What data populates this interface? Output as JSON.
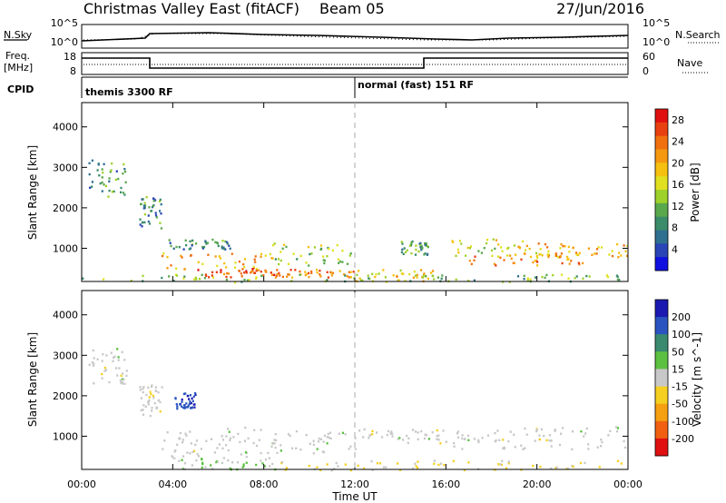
{
  "header": {
    "radar": "Christmas Valley East (fitACF)",
    "beam": "Beam 05",
    "date": "27/Jun/2016"
  },
  "top_panels": {
    "nsky_label": "N.Sky",
    "nsky_ticks": [
      "10^5",
      "10^0"
    ],
    "nsearch_label": "N.Search",
    "nsearch_ticks": [
      "10^5",
      "10^0"
    ],
    "freq_label_1": "Freq.",
    "freq_label_2": "[MHz]",
    "freq_ticks": [
      "18",
      "8"
    ],
    "nave_label": "Nave",
    "nave_ticks": [
      "60",
      "0"
    ],
    "cpid_label": "CPID",
    "cpid_segments": [
      "themis 3300 RF",
      "normal (fast) 151 RF"
    ]
  },
  "chart_data": [
    {
      "type": "heatmap",
      "title": "",
      "ylabel": "Slant Range [km]",
      "xlabel": "",
      "x_ticks": [
        "00:00",
        "04:00",
        "08:00",
        "12:00",
        "16:00",
        "20:00",
        "00:00"
      ],
      "y_ticks": [
        1000,
        2000,
        3000,
        4000
      ],
      "ylim": [
        180,
        4600
      ],
      "xlim_hours": [
        0,
        24
      ],
      "colorbar": {
        "label": "Power [dB]",
        "ticks": [
          4,
          8,
          12,
          16,
          20,
          24,
          28
        ],
        "range": [
          0,
          30
        ],
        "colors": [
          "#1010e0",
          "#2a45b5",
          "#2f6f90",
          "#3b8c6a",
          "#5aa84c",
          "#9ed12a",
          "#e0e020",
          "#f5c010",
          "#f59a10",
          "#f07010",
          "#e84010",
          "#e01010"
        ]
      },
      "echo_regions": [
        {
          "t": [
            0.3,
            2.0
          ],
          "r": [
            2300,
            3200
          ],
          "level": 9
        },
        {
          "t": [
            2.5,
            3.5
          ],
          "r": [
            1500,
            2300
          ],
          "level": 8
        },
        {
          "t": [
            3.5,
            6.5
          ],
          "r": [
            1000,
            1250
          ],
          "level": 8
        },
        {
          "t": [
            3.5,
            8.5
          ],
          "r": [
            500,
            900
          ],
          "level": 20
        },
        {
          "t": [
            5.0,
            8.5
          ],
          "r": [
            300,
            520
          ],
          "level": 26
        },
        {
          "t": [
            8.3,
            11.8
          ],
          "r": [
            600,
            1150
          ],
          "level": 14
        },
        {
          "t": [
            8.5,
            12.0
          ],
          "r": [
            300,
            500
          ],
          "level": 22
        },
        {
          "t": [
            12.0,
            15.5
          ],
          "r": [
            200,
            500
          ],
          "level": 18
        },
        {
          "t": [
            14.0,
            15.2
          ],
          "r": [
            850,
            1200
          ],
          "level": 10
        },
        {
          "t": [
            16.0,
            20.0
          ],
          "r": [
            820,
            1250
          ],
          "level": 16
        },
        {
          "t": [
            17.0,
            22.0
          ],
          "r": [
            600,
            900
          ],
          "level": 22
        },
        {
          "t": [
            20.0,
            24.0
          ],
          "r": [
            800,
            1150
          ],
          "level": 20
        },
        {
          "t": [
            0.0,
            24.0
          ],
          "r": [
            180,
            380
          ],
          "level": 12
        }
      ]
    },
    {
      "type": "heatmap",
      "title": "",
      "ylabel": "Slant Range [km]",
      "xlabel": "Time UT",
      "x_ticks": [
        "00:00",
        "04:00",
        "08:00",
        "12:00",
        "16:00",
        "20:00",
        "00:00"
      ],
      "y_ticks": [
        1000,
        2000,
        3000,
        4000
      ],
      "ylim": [
        180,
        4600
      ],
      "xlim_hours": [
        0,
        24
      ],
      "colorbar": {
        "label": "Velocity [m s^-1]",
        "ticks": [
          "200",
          "100",
          "50",
          "15",
          "-15",
          "-50",
          "-100",
          "-200"
        ],
        "range": [
          -250,
          250
        ],
        "colors": [
          "#1a1ab0",
          "#2a55c0",
          "#3a8a70",
          "#5cc040",
          "#c8c8c8",
          "#f5d020",
          "#f5a010",
          "#f06010",
          "#e01010"
        ]
      },
      "echo_regions": [
        {
          "t": [
            0.3,
            2.0
          ],
          "r": [
            2300,
            3200
          ],
          "level": 0
        },
        {
          "t": [
            2.5,
            3.5
          ],
          "r": [
            1500,
            2300
          ],
          "level": 0
        },
        {
          "t": [
            4.0,
            5.0
          ],
          "r": [
            1700,
            2100
          ],
          "level": 180
        },
        {
          "t": [
            3.5,
            8.5
          ],
          "r": [
            500,
            1250
          ],
          "level": 0
        },
        {
          "t": [
            8.3,
            12.0
          ],
          "r": [
            600,
            1150
          ],
          "level": 0
        },
        {
          "t": [
            12.0,
            16.0
          ],
          "r": [
            850,
            1200
          ],
          "level": 0
        },
        {
          "t": [
            16.0,
            24.0
          ],
          "r": [
            700,
            1250
          ],
          "level": 0
        },
        {
          "t": [
            4.0,
            8.5
          ],
          "r": [
            200,
            500
          ],
          "level": 30
        },
        {
          "t": [
            8.5,
            24.0
          ],
          "r": [
            180,
            420
          ],
          "level": -40
        }
      ]
    }
  ]
}
